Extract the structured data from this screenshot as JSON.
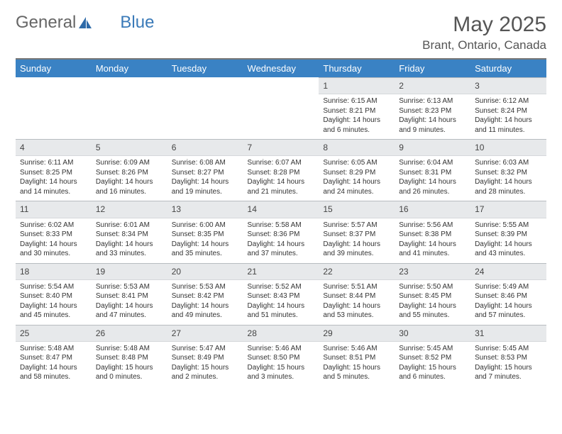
{
  "brand": {
    "part1": "General",
    "part2": "Blue"
  },
  "title": "May 2025",
  "location": "Brant, Ontario, Canada",
  "colors": {
    "header_bg": "#3a82c4",
    "header_text": "#ffffff",
    "daynum_bg": "#e7e9eb",
    "border": "#b8bcc0",
    "text": "#333333",
    "brand_blue": "#3a7ab8"
  },
  "fonts": {
    "title_size": 30,
    "location_size": 17,
    "dayhead_size": 13,
    "daynum_size": 12,
    "body_size": 10
  },
  "weekdays": [
    "Sunday",
    "Monday",
    "Tuesday",
    "Wednesday",
    "Thursday",
    "Friday",
    "Saturday"
  ],
  "weeks": [
    [
      null,
      null,
      null,
      null,
      {
        "n": "1",
        "sunrise": "6:15 AM",
        "sunset": "8:21 PM",
        "daylight": "14 hours and 6 minutes."
      },
      {
        "n": "2",
        "sunrise": "6:13 AM",
        "sunset": "8:23 PM",
        "daylight": "14 hours and 9 minutes."
      },
      {
        "n": "3",
        "sunrise": "6:12 AM",
        "sunset": "8:24 PM",
        "daylight": "14 hours and 11 minutes."
      }
    ],
    [
      {
        "n": "4",
        "sunrise": "6:11 AM",
        "sunset": "8:25 PM",
        "daylight": "14 hours and 14 minutes."
      },
      {
        "n": "5",
        "sunrise": "6:09 AM",
        "sunset": "8:26 PM",
        "daylight": "14 hours and 16 minutes."
      },
      {
        "n": "6",
        "sunrise": "6:08 AM",
        "sunset": "8:27 PM",
        "daylight": "14 hours and 19 minutes."
      },
      {
        "n": "7",
        "sunrise": "6:07 AM",
        "sunset": "8:28 PM",
        "daylight": "14 hours and 21 minutes."
      },
      {
        "n": "8",
        "sunrise": "6:05 AM",
        "sunset": "8:29 PM",
        "daylight": "14 hours and 24 minutes."
      },
      {
        "n": "9",
        "sunrise": "6:04 AM",
        "sunset": "8:31 PM",
        "daylight": "14 hours and 26 minutes."
      },
      {
        "n": "10",
        "sunrise": "6:03 AM",
        "sunset": "8:32 PM",
        "daylight": "14 hours and 28 minutes."
      }
    ],
    [
      {
        "n": "11",
        "sunrise": "6:02 AM",
        "sunset": "8:33 PM",
        "daylight": "14 hours and 30 minutes."
      },
      {
        "n": "12",
        "sunrise": "6:01 AM",
        "sunset": "8:34 PM",
        "daylight": "14 hours and 33 minutes."
      },
      {
        "n": "13",
        "sunrise": "6:00 AM",
        "sunset": "8:35 PM",
        "daylight": "14 hours and 35 minutes."
      },
      {
        "n": "14",
        "sunrise": "5:58 AM",
        "sunset": "8:36 PM",
        "daylight": "14 hours and 37 minutes."
      },
      {
        "n": "15",
        "sunrise": "5:57 AM",
        "sunset": "8:37 PM",
        "daylight": "14 hours and 39 minutes."
      },
      {
        "n": "16",
        "sunrise": "5:56 AM",
        "sunset": "8:38 PM",
        "daylight": "14 hours and 41 minutes."
      },
      {
        "n": "17",
        "sunrise": "5:55 AM",
        "sunset": "8:39 PM",
        "daylight": "14 hours and 43 minutes."
      }
    ],
    [
      {
        "n": "18",
        "sunrise": "5:54 AM",
        "sunset": "8:40 PM",
        "daylight": "14 hours and 45 minutes."
      },
      {
        "n": "19",
        "sunrise": "5:53 AM",
        "sunset": "8:41 PM",
        "daylight": "14 hours and 47 minutes."
      },
      {
        "n": "20",
        "sunrise": "5:53 AM",
        "sunset": "8:42 PM",
        "daylight": "14 hours and 49 minutes."
      },
      {
        "n": "21",
        "sunrise": "5:52 AM",
        "sunset": "8:43 PM",
        "daylight": "14 hours and 51 minutes."
      },
      {
        "n": "22",
        "sunrise": "5:51 AM",
        "sunset": "8:44 PM",
        "daylight": "14 hours and 53 minutes."
      },
      {
        "n": "23",
        "sunrise": "5:50 AM",
        "sunset": "8:45 PM",
        "daylight": "14 hours and 55 minutes."
      },
      {
        "n": "24",
        "sunrise": "5:49 AM",
        "sunset": "8:46 PM",
        "daylight": "14 hours and 57 minutes."
      }
    ],
    [
      {
        "n": "25",
        "sunrise": "5:48 AM",
        "sunset": "8:47 PM",
        "daylight": "14 hours and 58 minutes."
      },
      {
        "n": "26",
        "sunrise": "5:48 AM",
        "sunset": "8:48 PM",
        "daylight": "15 hours and 0 minutes."
      },
      {
        "n": "27",
        "sunrise": "5:47 AM",
        "sunset": "8:49 PM",
        "daylight": "15 hours and 2 minutes."
      },
      {
        "n": "28",
        "sunrise": "5:46 AM",
        "sunset": "8:50 PM",
        "daylight": "15 hours and 3 minutes."
      },
      {
        "n": "29",
        "sunrise": "5:46 AM",
        "sunset": "8:51 PM",
        "daylight": "15 hours and 5 minutes."
      },
      {
        "n": "30",
        "sunrise": "5:45 AM",
        "sunset": "8:52 PM",
        "daylight": "15 hours and 6 minutes."
      },
      {
        "n": "31",
        "sunrise": "5:45 AM",
        "sunset": "8:53 PM",
        "daylight": "15 hours and 7 minutes."
      }
    ]
  ],
  "labels": {
    "sunrise_prefix": "Sunrise: ",
    "sunset_prefix": "Sunset: ",
    "daylight_prefix": "Daylight: "
  }
}
